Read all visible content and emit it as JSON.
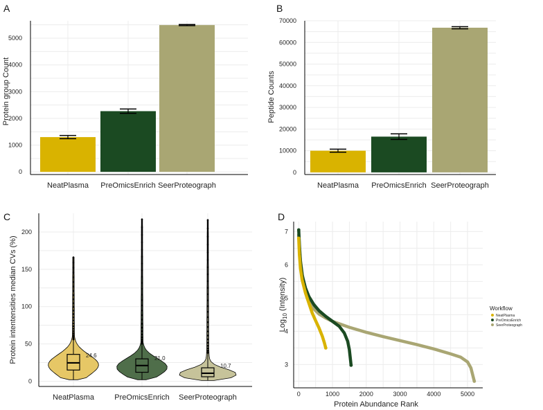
{
  "chart_data": [
    {
      "panel": "A",
      "type": "bar",
      "categories": [
        "NeatPlasma",
        "PreOmicsEnrich",
        "SeerProteograph"
      ],
      "values": [
        1300,
        2270,
        5490
      ],
      "errors": [
        60,
        80,
        20
      ],
      "colors": [
        "#d9b300",
        "#1b4a22",
        "#a9a673"
      ],
      "ylabel": "Protein group  Count",
      "xlabel": "",
      "ylim": [
        -100,
        5650
      ],
      "yticks": [
        0,
        1000,
        2000,
        3000,
        4000,
        5000
      ],
      "ytick_labels": [
        "0",
        "1000",
        "2000",
        "3000",
        "4000",
        "5000"
      ]
    },
    {
      "panel": "B",
      "type": "bar",
      "categories": [
        "NeatPlasma",
        "PreOmicsEnrich",
        "SeerProteograph"
      ],
      "values": [
        10000,
        16500,
        66800
      ],
      "errors": [
        700,
        1300,
        500
      ],
      "colors": [
        "#d9b300",
        "#1b4a22",
        "#a9a673"
      ],
      "ylabel": "Peptide Counts",
      "xlabel": "",
      "ylim": [
        -1000,
        70000
      ],
      "yticks": [
        0,
        10000,
        20000,
        30000,
        40000,
        50000,
        60000,
        70000
      ],
      "ytick_labels": [
        "0",
        "10000",
        "20000",
        "30000",
        "40000",
        "50000",
        "60000",
        "70000"
      ]
    },
    {
      "panel": "C",
      "type": "violin",
      "categories": [
        "NeatPlasma",
        "PreOmicsEnrich",
        "SeerProteograph"
      ],
      "medians": [
        24.6,
        21.0,
        10.7
      ],
      "median_labels": [
        "24.6",
        "21.0",
        "10.7"
      ],
      "q1": [
        15,
        12,
        6
      ],
      "q3": [
        36,
        30,
        18
      ],
      "whisker_low": [
        2,
        2,
        1
      ],
      "max": [
        166,
        217,
        216
      ],
      "colors": [
        "#e6c766",
        "#4f6e4a",
        "#c6c39a"
      ],
      "ylabel": "Protein intentensities median CVs (%)",
      "xlabel": "",
      "ylim": [
        -7,
        225
      ],
      "yticks": [
        0,
        50,
        100,
        150,
        200
      ],
      "ytick_labels": [
        "0",
        "50",
        "100",
        "150",
        "200"
      ]
    },
    {
      "panel": "D",
      "type": "scatter",
      "xlabel": "Protein Abundance Rank",
      "ylabel_main": "Log",
      "ylabel_sub": "10",
      "ylabel_rest": " (Intensity)",
      "xlim": [
        -150,
        5450
      ],
      "ylim": [
        2.3,
        7.3
      ],
      "xticks": [
        0,
        1000,
        2000,
        3000,
        4000,
        5000
      ],
      "xtick_labels": [
        "0",
        "1000",
        "2000",
        "3000",
        "4000",
        "5000"
      ],
      "yticks": [
        3,
        4,
        5,
        6,
        7
      ],
      "ytick_labels": [
        "3",
        "4",
        "5",
        "6",
        "7"
      ],
      "series": [
        {
          "name": "SeerProteograph",
          "color": "#a9a673",
          "x": [
            0,
            30,
            80,
            150,
            250,
            400,
            600,
            800,
            1000,
            1500,
            2000,
            2500,
            3000,
            3500,
            4000,
            4500,
            4800,
            5000,
            5100,
            5200
          ],
          "y": [
            6.9,
            6.3,
            5.9,
            5.4,
            5.0,
            4.72,
            4.52,
            4.4,
            4.3,
            4.12,
            3.97,
            3.84,
            3.72,
            3.6,
            3.47,
            3.32,
            3.22,
            3.08,
            2.9,
            2.5
          ]
        },
        {
          "name": "PreOmicsEnrich",
          "color": "#1b4a22",
          "x": [
            0,
            20,
            50,
            100,
            200,
            300,
            450,
            600,
            800,
            1000,
            1200,
            1350,
            1450,
            1500,
            1550
          ],
          "y": [
            7.05,
            6.6,
            6.1,
            5.7,
            5.3,
            5.05,
            4.8,
            4.62,
            4.45,
            4.3,
            4.15,
            3.95,
            3.7,
            3.45,
            2.98
          ]
        },
        {
          "name": "NeatPlasma",
          "color": "#d9b300",
          "x": [
            0,
            20,
            50,
            100,
            200,
            300,
            400,
            500,
            600,
            700,
            760,
            800
          ],
          "y": [
            6.8,
            6.3,
            5.9,
            5.55,
            5.15,
            4.85,
            4.55,
            4.32,
            4.1,
            3.85,
            3.65,
            3.5
          ]
        }
      ],
      "legend": {
        "title": "Workflow",
        "position": "right",
        "items": [
          {
            "label": "NeatPlasma",
            "color": "#d9b300"
          },
          {
            "label": "PreOmicsEnrich",
            "color": "#1b4a22"
          },
          {
            "label": "SeerProteograph",
            "color": "#a9a673"
          }
        ]
      }
    }
  ]
}
